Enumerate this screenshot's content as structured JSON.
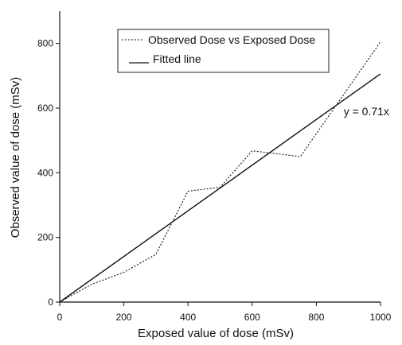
{
  "chart_data": {
    "type": "line",
    "xlabel": "Exposed value of dose (mSv)",
    "ylabel": "Observed value of dose (mSv)",
    "xlim": [
      0,
      1000
    ],
    "ylim": [
      0,
      900
    ],
    "xticks": [
      0,
      200,
      400,
      600,
      800,
      1000
    ],
    "yticks": [
      0,
      200,
      400,
      600,
      800
    ],
    "grid": false,
    "legend_position": "top-right",
    "series": [
      {
        "name": "Observed Dose vs Exposed Dose",
        "style": "dotted",
        "color": "#111111",
        "x": [
          0,
          100,
          200,
          300,
          400,
          500,
          600,
          750,
          1000
        ],
        "y": [
          0,
          55,
          92,
          148,
          343,
          355,
          468,
          450,
          805
        ]
      },
      {
        "name": "Fitted line",
        "style": "solid",
        "color": "#111111",
        "x": [
          0,
          1000
        ],
        "y": [
          0,
          706
        ]
      }
    ],
    "annotations": [
      {
        "text": "y = 0.71x",
        "x": 905,
        "y": 590
      }
    ]
  }
}
